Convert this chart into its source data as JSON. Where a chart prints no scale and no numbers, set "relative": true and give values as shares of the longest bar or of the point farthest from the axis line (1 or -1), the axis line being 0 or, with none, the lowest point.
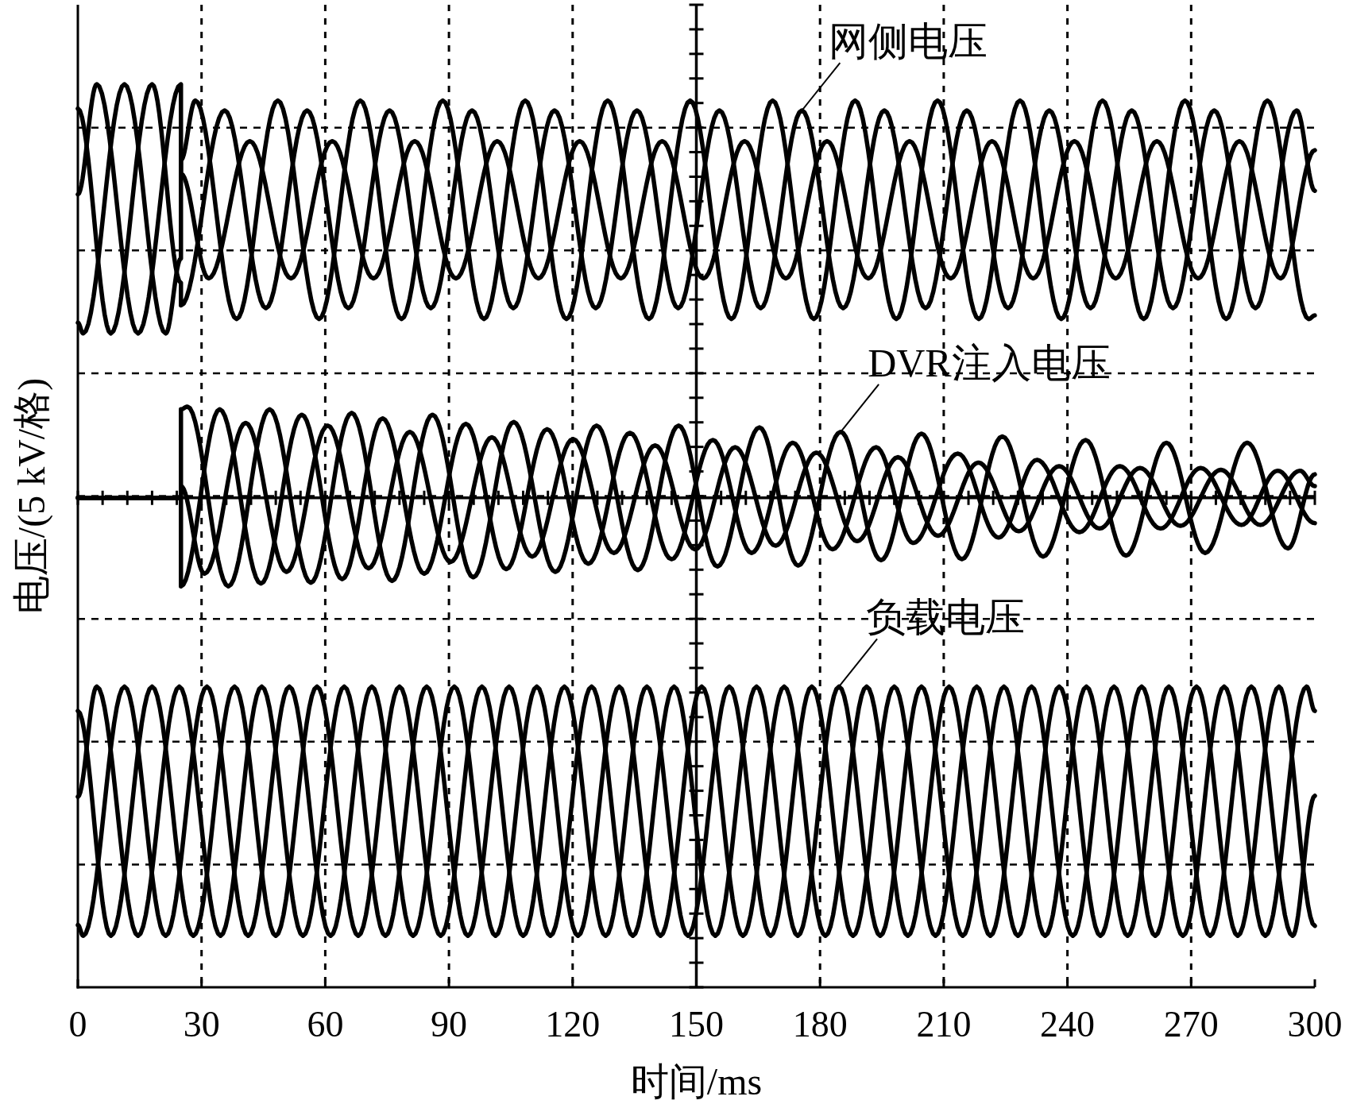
{
  "chart_data": {
    "type": "line",
    "relative": true,
    "xlabel": "时间/ms",
    "ylabel": "电压/(5 kV/格)",
    "xlim": [
      0,
      300
    ],
    "xticks": [
      0,
      30,
      60,
      90,
      120,
      150,
      180,
      210,
      240,
      270,
      300
    ],
    "grid": true,
    "line_style": "solid",
    "ref_lines": [
      {
        "axis": "x",
        "value": 150,
        "line_style": "solid"
      },
      {
        "axis": "y",
        "value": 0.542,
        "line_style": "solid"
      }
    ],
    "annotations": [
      {
        "text": "网侧电压",
        "x": 175.6,
        "y": 0.971
      },
      {
        "text": "DVR注入电压",
        "x": 185,
        "y": 0.615
      },
      {
        "text": "负载电压",
        "x": 184.6,
        "y": 0.333
      }
    ],
    "series": [
      {
        "color": "#000000",
        "x": [
          0,
          4.6,
          14.6,
          25,
          25,
          31.7,
          41.7,
          51.7,
          61.7,
          71.7,
          81.7,
          91.7,
          101.7,
          111.7,
          121.7,
          131.7,
          141.7,
          151.7,
          161.7,
          171.7,
          181.7,
          191.7,
          201.7,
          211.7,
          221.7,
          231.7,
          241.7,
          251.7,
          261.7,
          271.7,
          281.7,
          291.7,
          300
        ],
        "values": [
          0.878,
          1,
          0.724,
          1,
          0.901,
          0.785,
          0.937,
          0.785,
          0.937,
          0.785,
          0.937,
          0.785,
          0.937,
          0.785,
          0.937,
          0.785,
          0.937,
          0.785,
          0.937,
          0.785,
          0.937,
          0.785,
          0.937,
          0.785,
          0.937,
          0.785,
          0.937,
          0.785,
          0.937,
          0.785,
          0.937,
          0.785,
          0.927
        ]
      },
      {
        "color": "#000000",
        "x": [
          0,
          1.3,
          11.3,
          21.3,
          25,
          25,
          28.5,
          38.5,
          48.5,
          58.5,
          68.5,
          78.5,
          88.5,
          98.5,
          108.5,
          118.5,
          128.5,
          138.5,
          148.5,
          158.5,
          168.5,
          178.5,
          188.5,
          198.5,
          208.5,
          218.5,
          228.5,
          238.5,
          248.5,
          258.5,
          268.5,
          278.5,
          288.5,
          298.5,
          300
        ],
        "values": [
          0.736,
          0.724,
          1,
          0.724,
          0.807,
          0.916,
          0.982,
          0.74,
          0.982,
          0.74,
          0.982,
          0.74,
          0.982,
          0.74,
          0.982,
          0.74,
          0.982,
          0.74,
          0.982,
          0.74,
          0.982,
          0.74,
          0.982,
          0.74,
          0.982,
          0.74,
          0.982,
          0.74,
          0.982,
          0.74,
          0.982,
          0.74,
          0.982,
          0.74,
          0.744
        ]
      },
      {
        "color": "#000000",
        "x": [
          0,
          8,
          18,
          25,
          25,
          35.6,
          45.6,
          55.6,
          65.6,
          75.6,
          85.6,
          95.6,
          105.6,
          115.6,
          125.6,
          135.6,
          145.6,
          155.6,
          165.6,
          175.6,
          185.6,
          195.6,
          205.6,
          215.6,
          225.6,
          235.6,
          245.6,
          255.6,
          265.6,
          275.6,
          285.6,
          295.6,
          300
        ],
        "values": [
          0.973,
          0.724,
          1,
          0.78,
          0.755,
          0.971,
          0.752,
          0.971,
          0.752,
          0.971,
          0.752,
          0.971,
          0.752,
          0.971,
          0.752,
          0.971,
          0.752,
          0.971,
          0.752,
          0.971,
          0.752,
          0.971,
          0.752,
          0.971,
          0.752,
          0.971,
          0.752,
          0.971,
          0.752,
          0.971,
          0.752,
          0.971,
          0.882
        ]
      },
      {
        "color": "#000000",
        "x": [
          0,
          25,
          25,
          26.6,
          36.5,
          46.5,
          56.5,
          66.4,
          76.2,
          86,
          95.9,
          105.7,
          115.8,
          125.8,
          135.8,
          145.7,
          155.1,
          165.3,
          174.7,
          185,
          194.8,
          204.6,
          214.4,
          224.2,
          234.1,
          244.4,
          254.2,
          264,
          273.4,
          283.6,
          293.5,
          300
        ],
        "values": [
          0.542,
          0.542,
          0.64,
          0.643,
          0.444,
          0.64,
          0.448,
          0.636,
          0.45,
          0.634,
          0.454,
          0.626,
          0.46,
          0.622,
          0.462,
          0.622,
          0.466,
          0.62,
          0.467,
          0.615,
          0.473,
          0.613,
          0.474,
          0.61,
          0.477,
          0.606,
          0.478,
          0.603,
          0.481,
          0.603,
          0.486,
          0.568
        ]
      },
      {
        "color": "#000000",
        "x": [
          0,
          25,
          25,
          34.4,
          44.4,
          54.3,
          64.1,
          73.9,
          84,
          94.1,
          103.9,
          113.8,
          123.8,
          133.9,
          144,
          154,
          163.4,
          173.4,
          183,
          193.6,
          202.6,
          213.4,
          223.3,
          232.6,
          242.9,
          252.7,
          262.6,
          272.3,
          282.2,
          291,
          300
        ],
        "values": [
          0.542,
          0.542,
          0.444,
          0.64,
          0.447,
          0.634,
          0.452,
          0.63,
          0.458,
          0.624,
          0.463,
          0.618,
          0.469,
          0.614,
          0.474,
          0.606,
          0.481,
          0.603,
          0.485,
          0.598,
          0.492,
          0.591,
          0.498,
          0.584,
          0.504,
          0.577,
          0.508,
          0.575,
          0.512,
          0.572,
          0.514
        ]
      },
      {
        "color": "#000000",
        "x": [
          0,
          25,
          25,
          30.7,
          40.7,
          50.6,
          60.6,
          70.5,
          80.5,
          90.4,
          100.4,
          110.2,
          120.1,
          130,
          140,
          149.7,
          159.4,
          169.2,
          179.1,
          189,
          198.9,
          208.6,
          218.4,
          228.2,
          238,
          247.8,
          257.6,
          267.4,
          277.2,
          286.8,
          296.4,
          300
        ],
        "values": [
          0.542,
          0.542,
          0.555,
          0.458,
          0.625,
          0.46,
          0.622,
          0.464,
          0.615,
          0.471,
          0.609,
          0.477,
          0.607,
          0.481,
          0.6,
          0.485,
          0.598,
          0.489,
          0.592,
          0.494,
          0.587,
          0.5,
          0.581,
          0.505,
          0.577,
          0.508,
          0.575,
          0.511,
          0.573,
          0.512,
          0.572,
          0.555
        ]
      },
      {
        "color": "#000000",
        "x": [
          0,
          4.6,
          14.6,
          24.6,
          34.6,
          44.6,
          54.6,
          64.6,
          74.6,
          84.6,
          94.6,
          104.6,
          114.6,
          124.6,
          134.6,
          144.6,
          154.6,
          164.6,
          174.6,
          184.6,
          194.6,
          204.6,
          214.6,
          224.6,
          234.6,
          244.6,
          254.6,
          264.6,
          274.6,
          284.6,
          294.6,
          300
        ],
        "values": [
          0.211,
          0.333,
          0.057,
          0.333,
          0.057,
          0.333,
          0.057,
          0.333,
          0.057,
          0.333,
          0.057,
          0.333,
          0.057,
          0.333,
          0.057,
          0.333,
          0.057,
          0.333,
          0.057,
          0.333,
          0.057,
          0.333,
          0.057,
          0.333,
          0.057,
          0.333,
          0.057,
          0.333,
          0.057,
          0.333,
          0.057,
          0.212
        ]
      },
      {
        "color": "#000000",
        "x": [
          0,
          1.3,
          11.3,
          21.3,
          31.3,
          41.3,
          51.3,
          61.3,
          71.3,
          81.3,
          91.3,
          101.3,
          111.3,
          121.3,
          131.3,
          141.3,
          151.3,
          161.3,
          171.3,
          181.3,
          191.3,
          201.3,
          211.3,
          221.3,
          231.3,
          241.3,
          251.3,
          261.3,
          271.3,
          281.3,
          291.3,
          300
        ],
        "values": [
          0.069,
          0.057,
          0.333,
          0.057,
          0.333,
          0.057,
          0.333,
          0.057,
          0.333,
          0.057,
          0.333,
          0.057,
          0.333,
          0.057,
          0.333,
          0.057,
          0.333,
          0.057,
          0.333,
          0.057,
          0.333,
          0.057,
          0.333,
          0.057,
          0.333,
          0.057,
          0.333,
          0.057,
          0.333,
          0.057,
          0.333,
          0.068
        ]
      },
      {
        "color": "#000000",
        "x": [
          0,
          8,
          18,
          28,
          38,
          48,
          58,
          68,
          78,
          88,
          98,
          108,
          118,
          128,
          138,
          148,
          158,
          168,
          178,
          188,
          198,
          208,
          218,
          228,
          238,
          248,
          258,
          268,
          278,
          288,
          298,
          300
        ],
        "values": [
          0.306,
          0.057,
          0.333,
          0.057,
          0.333,
          0.057,
          0.333,
          0.057,
          0.333,
          0.057,
          0.333,
          0.057,
          0.333,
          0.057,
          0.333,
          0.057,
          0.333,
          0.057,
          0.333,
          0.057,
          0.333,
          0.057,
          0.333,
          0.057,
          0.333,
          0.057,
          0.333,
          0.057,
          0.333,
          0.057,
          0.333,
          0.306
        ]
      }
    ]
  }
}
